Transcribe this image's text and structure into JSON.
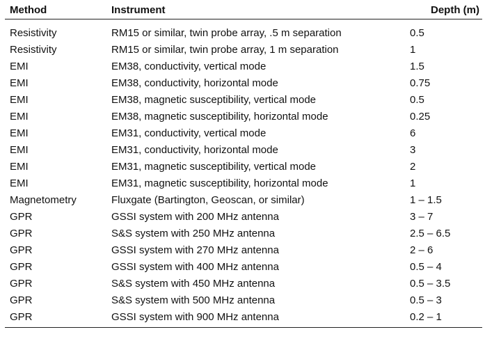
{
  "table": {
    "headers": {
      "method": "Method",
      "instrument": "Instrument",
      "depth": "Depth (m)"
    },
    "rows": [
      {
        "method": "Resistivity",
        "instrument": "RM15 or similar, twin probe array, .5 m separation",
        "depth": "0.5"
      },
      {
        "method": "Resistivity",
        "instrument": "RM15 or similar, twin probe array, 1 m separation",
        "depth": "1"
      },
      {
        "method": "EMI",
        "instrument": "EM38, conductivity, vertical mode",
        "depth": "1.5"
      },
      {
        "method": "EMI",
        "instrument": "EM38, conductivity, horizontal mode",
        "depth": "0.75"
      },
      {
        "method": "EMI",
        "instrument": "EM38, magnetic susceptibility, vertical mode",
        "depth": "0.5"
      },
      {
        "method": "EMI",
        "instrument": "EM38, magnetic susceptibility, horizontal mode",
        "depth": "0.25"
      },
      {
        "method": "EMI",
        "instrument": "EM31, conductivity, vertical mode",
        "depth": "6"
      },
      {
        "method": "EMI",
        "instrument": "EM31, conductivity, horizontal mode",
        "depth": "3"
      },
      {
        "method": "EMI",
        "instrument": "EM31, magnetic susceptibility, vertical mode",
        "depth": "2"
      },
      {
        "method": "EMI",
        "instrument": "EM31, magnetic susceptibility, horizontal mode",
        "depth": "1"
      },
      {
        "method": "Magnetometry",
        "instrument": "Fluxgate (Bartington, Geoscan, or similar)",
        "depth": "1 – 1.5"
      },
      {
        "method": "GPR",
        "instrument": "GSSI system with 200 MHz antenna",
        "depth": "3 – 7"
      },
      {
        "method": "GPR",
        "instrument": "S&S system with 250 MHz antenna",
        "depth": "2.5 – 6.5"
      },
      {
        "method": "GPR",
        "instrument": "GSSI system with 270 MHz antenna",
        "depth": "2 – 6"
      },
      {
        "method": "GPR",
        "instrument": "GSSI system with 400 MHz antenna",
        "depth": "0.5 – 4"
      },
      {
        "method": "GPR",
        "instrument": "S&S system with 450 MHz antenna",
        "depth": "0.5 – 3.5"
      },
      {
        "method": "GPR",
        "instrument": "S&S system with 500 MHz antenna",
        "depth": "0.5 – 3"
      },
      {
        "method": "GPR",
        "instrument": "GSSI system with 900 MHz antenna",
        "depth": "0.2 – 1"
      }
    ]
  }
}
